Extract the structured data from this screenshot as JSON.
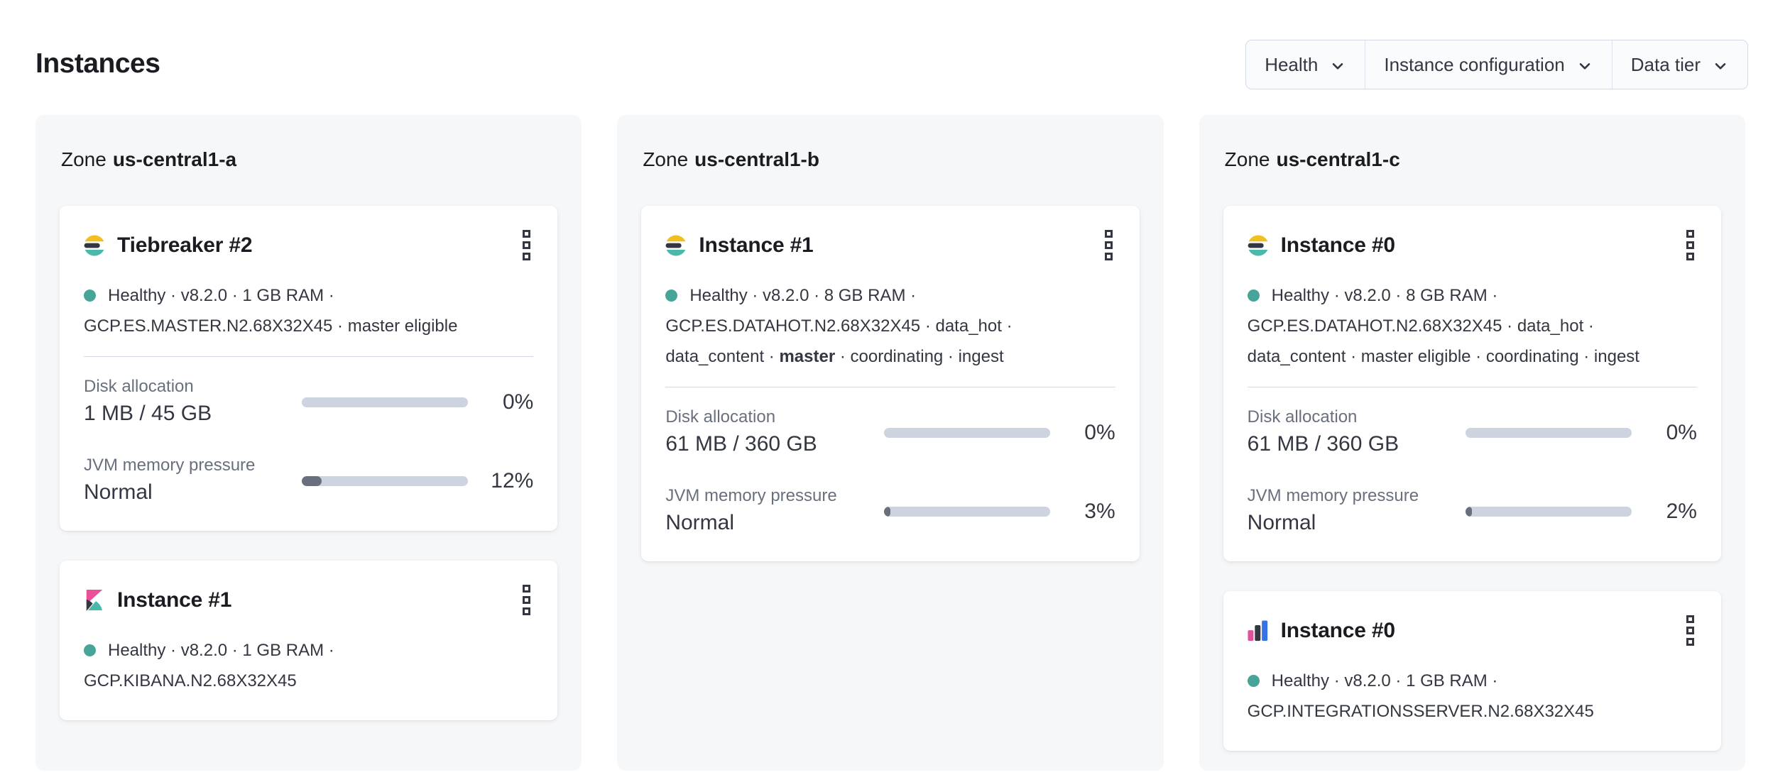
{
  "page": {
    "title": "Instances"
  },
  "filters": [
    {
      "label": "Health"
    },
    {
      "label": "Instance configuration"
    },
    {
      "label": "Data tier"
    }
  ],
  "colors": {
    "health_dot": "#46a598",
    "bar_track": "#cdd3df",
    "bar_fill": "#69707d",
    "panel_bg": "#f5f7f9",
    "logo_yellow": "#efc020",
    "logo_teal": "#4ab8ab",
    "logo_dark": "#343741",
    "logo_pink": "#ea4f98",
    "logo_blue": "#3572e4"
  },
  "zones": [
    {
      "label": "Zone",
      "name": "us-central1-a",
      "cards": [
        {
          "icon": "elasticsearch-logo",
          "title": "Tiebreaker #2",
          "line1": "Healthy · v8.2.0 · 1 GB RAM ·",
          "line2": "GCP.ES.MASTER.N2.68X32X45 · master eligible",
          "metrics": {
            "disk": {
              "label": "Disk allocation",
              "value": "1 MB / 45 GB",
              "percent": 0,
              "percent_label": "0%"
            },
            "jvm": {
              "label": "JVM memory pressure",
              "value": "Normal",
              "percent": 12,
              "percent_label": "12%"
            }
          }
        },
        {
          "icon": "kibana-logo",
          "title": "Instance #1",
          "line1": "Healthy · v8.2.0 · 1 GB RAM ·",
          "line2": "GCP.KIBANA.N2.68X32X45"
        }
      ]
    },
    {
      "label": "Zone",
      "name": "us-central1-b",
      "cards": [
        {
          "icon": "elasticsearch-logo",
          "title": "Instance #1",
          "line1": "Healthy · v8.2.0 · 8 GB RAM ·",
          "line2": "GCP.ES.DATAHOT.N2.68X32X45 · data_hot ·",
          "line3_pre": "data_content · ",
          "line3_bold": "master",
          "line3_post": " · coordinating · ingest",
          "metrics": {
            "disk": {
              "label": "Disk allocation",
              "value": "61 MB / 360 GB",
              "percent": 0,
              "percent_label": "0%"
            },
            "jvm": {
              "label": "JVM memory pressure",
              "value": "Normal",
              "percent": 3,
              "percent_label": "3%"
            }
          }
        }
      ]
    },
    {
      "label": "Zone",
      "name": "us-central1-c",
      "cards": [
        {
          "icon": "elasticsearch-logo",
          "title": "Instance #0",
          "line1": "Healthy · v8.2.0 · 8 GB RAM ·",
          "line2": "GCP.ES.DATAHOT.N2.68X32X45 · data_hot ·",
          "line3": "data_content · master eligible · coordinating · ingest",
          "metrics": {
            "disk": {
              "label": "Disk allocation",
              "value": "61 MB / 360 GB",
              "percent": 0,
              "percent_label": "0%"
            },
            "jvm": {
              "label": "JVM memory pressure",
              "value": "Normal",
              "percent": 2,
              "percent_label": "2%"
            }
          }
        },
        {
          "icon": "integrations-server-logo",
          "title": "Instance #0",
          "line1": "Healthy · v8.2.0 · 1 GB RAM ·",
          "line2": "GCP.INTEGRATIONSSERVER.N2.68X32X45"
        }
      ]
    }
  ]
}
